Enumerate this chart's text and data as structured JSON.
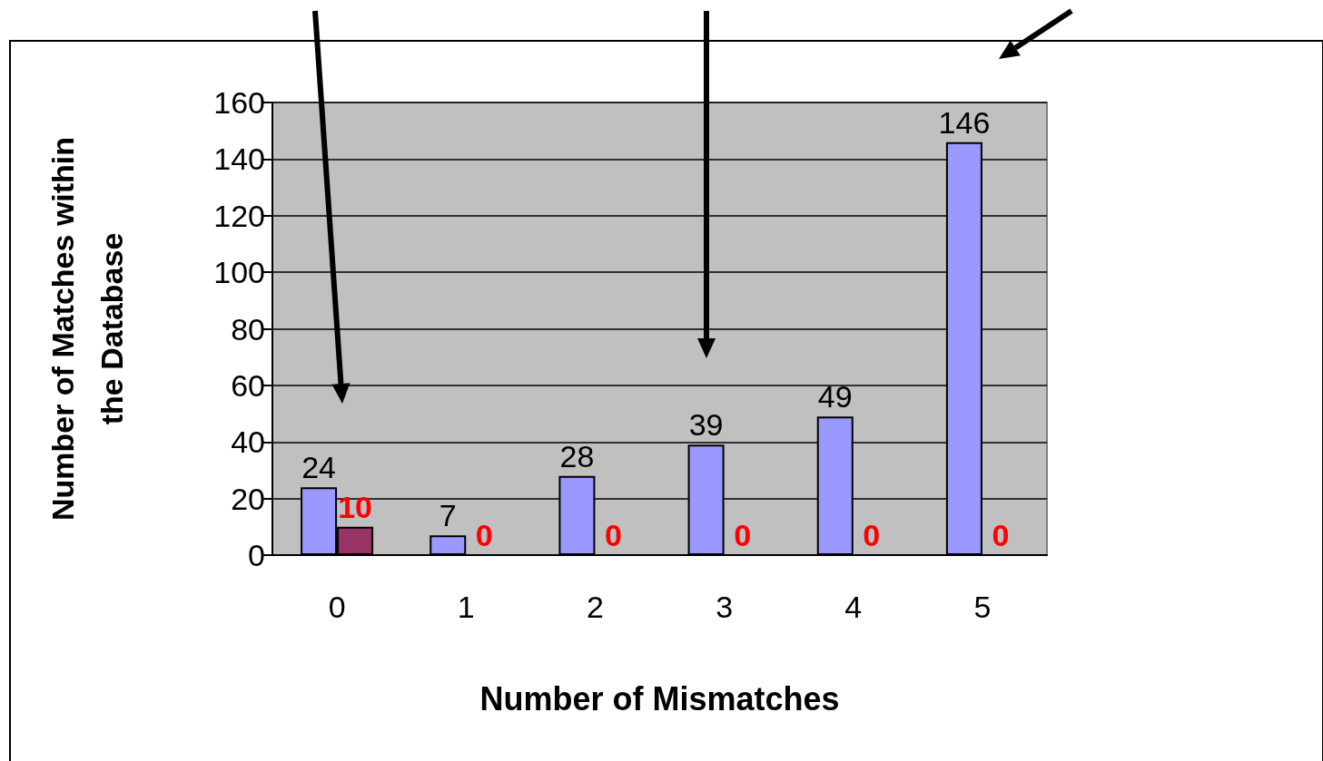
{
  "chart_data": {
    "type": "bar",
    "xlabel": "Number of Mismatches",
    "ylabel": "Number of Matches within\nthe Database",
    "categories": [
      "0",
      "1",
      "2",
      "3",
      "4",
      "5"
    ],
    "series": [
      {
        "color": "#9999ff",
        "values": [
          24,
          7,
          28,
          39,
          49,
          146
        ]
      },
      {
        "color": "#993366",
        "values": [
          10,
          0,
          0,
          0,
          0,
          0
        ]
      }
    ],
    "ylim": [
      0,
      160
    ],
    "yticks": [
      0,
      20,
      40,
      60,
      80,
      100,
      120,
      140,
      160
    ],
    "grid": "y",
    "data_labels": true
  }
}
